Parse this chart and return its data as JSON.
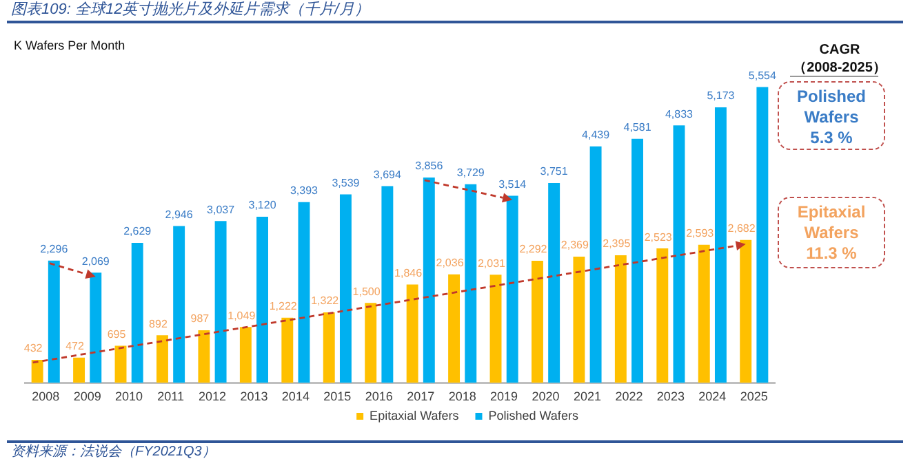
{
  "chart_data": {
    "type": "bar",
    "title": "图表109: 全球12英寸抛光片及外延片需求（千片/月）",
    "ylabel": "K Wafers Per Month",
    "categories": [
      "2008",
      "2009",
      "2010",
      "2011",
      "2012",
      "2013",
      "2014",
      "2015",
      "2016",
      "2017",
      "2018",
      "2019",
      "2020",
      "2021",
      "2022",
      "2023",
      "2024",
      "2025"
    ],
    "series": [
      {
        "name": "Epitaxial Wafers",
        "color": "#ffc000",
        "values": [
          432,
          472,
          695,
          892,
          987,
          1049,
          1222,
          1322,
          1500,
          1846,
          2036,
          2031,
          2292,
          2369,
          2395,
          2523,
          2593,
          2682
        ],
        "value_labels": [
          "432",
          "472",
          "695",
          "892",
          "987",
          "1,049",
          "1,222",
          "1,322",
          "1,500",
          "1,846",
          "2,036",
          "2,031",
          "2,292",
          "2,369",
          "2,395",
          "2,523",
          "2,593",
          "2,682"
        ]
      },
      {
        "name": "Polished Wafers",
        "color": "#00b0f0",
        "values": [
          2296,
          2069,
          2629,
          2946,
          3037,
          3120,
          3393,
          3539,
          3694,
          3856,
          3729,
          3514,
          3751,
          4439,
          4581,
          4833,
          5173,
          5554
        ],
        "value_labels": [
          "2,296",
          "2,069",
          "2,629",
          "2,946",
          "3,037",
          "3,120",
          "3,393",
          "3,539",
          "3,694",
          "3,856",
          "3,729",
          "3,514",
          "3,751",
          "4,439",
          "4,581",
          "4,833",
          "5,173",
          "5,554"
        ]
      }
    ],
    "tick_labels": "x",
    "legend": "bottom",
    "annotations": [
      "CAGR",
      "（2008-2025）",
      "Polished Wafers\n5.3 %",
      "Epitaxial Wafers\n11.3 %",
      "资料来源：法说会（FY2021Q3）"
    ]
  }
}
